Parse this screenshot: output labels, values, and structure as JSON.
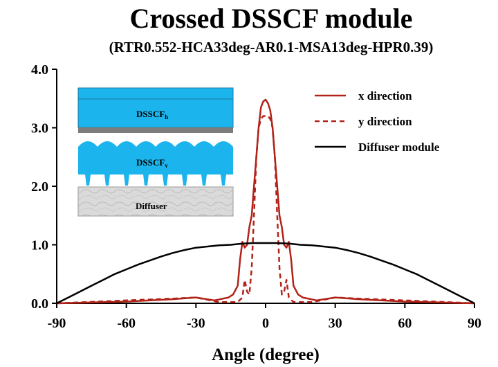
{
  "chart_data": {
    "type": "line",
    "title": "Crossed DSSCF module",
    "subtitle": "(RTR0.552-HCA33deg-AR0.1-MSA13deg-HPR0.39)",
    "xlabel": "Angle (degree)",
    "ylabel": "",
    "xlim": [
      -90,
      90
    ],
    "ylim": [
      0,
      4
    ],
    "x_ticks": [
      "-90",
      "-60",
      "-30",
      "0",
      "30",
      "60",
      "90"
    ],
    "y_ticks": [
      "0.0",
      "1.0",
      "2.0",
      "3.0",
      "4.0"
    ],
    "grid": false,
    "legend_position": "top-right",
    "series": [
      {
        "name": "x direction",
        "color": "#b22218",
        "style": "solid",
        "x": [
          -90,
          -60,
          -40,
          -30,
          -22,
          -16,
          -14,
          -12,
          -11,
          -10,
          -9,
          -8,
          -7,
          -6,
          -5,
          -4,
          -3,
          -2,
          -1,
          0,
          1,
          2,
          3,
          4,
          5,
          6,
          7,
          8,
          9,
          10,
          11,
          12,
          14,
          16,
          22,
          30,
          40,
          60,
          90
        ],
        "y": [
          0.0,
          0.03,
          0.07,
          0.1,
          0.05,
          0.1,
          0.15,
          0.3,
          0.75,
          1.05,
          0.95,
          1.0,
          1.3,
          1.5,
          2.0,
          2.5,
          3.0,
          3.35,
          3.45,
          3.48,
          3.42,
          3.3,
          3.0,
          2.5,
          2.0,
          1.5,
          1.3,
          1.0,
          0.95,
          1.05,
          0.75,
          0.3,
          0.15,
          0.1,
          0.05,
          0.1,
          0.07,
          0.03,
          0.0
        ]
      },
      {
        "name": "y direction",
        "color": "#b22218",
        "style": "dashed",
        "x": [
          -90,
          -60,
          -40,
          -30,
          -20,
          -12,
          -10,
          -9,
          -8,
          -7,
          -6,
          -5,
          -4,
          -3,
          -2,
          -1,
          0,
          1,
          2,
          3,
          4,
          5,
          6,
          7,
          8,
          9,
          10,
          12,
          20,
          30,
          40,
          60,
          90
        ],
        "y": [
          0.0,
          0.05,
          0.08,
          0.1,
          0.02,
          0.02,
          0.1,
          0.4,
          0.2,
          0.15,
          0.6,
          1.5,
          2.5,
          3.0,
          3.15,
          3.2,
          3.2,
          3.2,
          3.15,
          3.0,
          2.5,
          1.5,
          0.6,
          0.15,
          0.2,
          0.4,
          0.1,
          0.02,
          0.02,
          0.1,
          0.08,
          0.05,
          0.0
        ]
      },
      {
        "name": "Diffuser module",
        "color": "#000000",
        "style": "solid",
        "x": [
          -90,
          -85,
          -80,
          -75,
          -70,
          -65,
          -60,
          -55,
          -50,
          -45,
          -40,
          -35,
          -30,
          -25,
          -20,
          -15,
          -10,
          -5,
          0,
          5,
          10,
          15,
          20,
          25,
          30,
          35,
          40,
          45,
          50,
          55,
          60,
          65,
          70,
          75,
          80,
          85,
          90
        ],
        "y": [
          0.0,
          0.1,
          0.2,
          0.3,
          0.4,
          0.5,
          0.58,
          0.66,
          0.73,
          0.8,
          0.86,
          0.91,
          0.95,
          0.97,
          0.99,
          1.0,
          1.02,
          1.03,
          1.03,
          1.03,
          1.02,
          1.0,
          0.99,
          0.97,
          0.95,
          0.91,
          0.86,
          0.8,
          0.73,
          0.66,
          0.58,
          0.5,
          0.4,
          0.3,
          0.2,
          0.1,
          0.0
        ]
      }
    ],
    "inset": {
      "labels": [
        "DSSCF",
        "DSSCF",
        "Diffuser"
      ],
      "subscripts": [
        "h",
        "v",
        ""
      ],
      "colors": {
        "film": "#1cb4ec",
        "base": "#7d7d7d",
        "diffuser": "#d9d9d9"
      }
    }
  }
}
